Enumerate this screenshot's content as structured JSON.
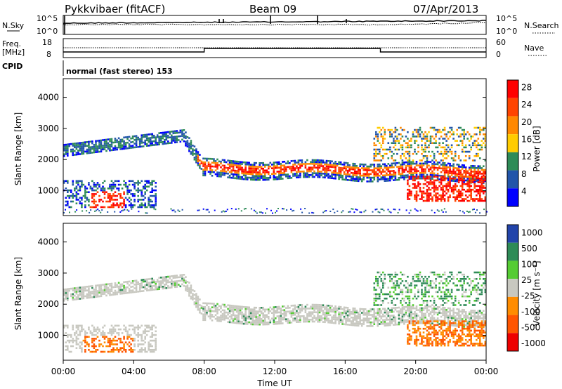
{
  "header": {
    "radar": "Pykkvibaer (fitACF)",
    "beam": "Beam 09",
    "date": "07/Apr/2013"
  },
  "strip_noise": {
    "left_label": "N.Sky",
    "right_label": "N.Search",
    "left_ticks": [
      "10^5",
      "10^0"
    ],
    "right_ticks": [
      "10^5",
      "10^0"
    ]
  },
  "strip_freq": {
    "left_label_1": "Freq.",
    "left_label_2": "[MHz]",
    "right_label": "Nave",
    "left_ticks": [
      "18",
      "8"
    ],
    "right_ticks": [
      "60",
      "0"
    ]
  },
  "cpid": {
    "label": "CPID",
    "text": "normal (fast stereo) 153"
  },
  "chart_data": [
    {
      "type": "heatmap",
      "ylabel": "Slant Range [km]",
      "ylim": [
        200,
        4600
      ],
      "yticks": [
        "4000",
        "3000",
        "2000",
        "1000"
      ],
      "xticks": [
        "00:00",
        "04:00",
        "08:00",
        "12:00",
        "16:00",
        "20:00",
        "00:00"
      ],
      "colorbar": {
        "label": "Power [dB]",
        "ticks": [
          "28",
          "24",
          "20",
          "16",
          "12",
          "8",
          "4"
        ],
        "colors": [
          "#ff0000",
          "#ff4400",
          "#ff8800",
          "#ffcc00",
          "#2e8b57",
          "#2255aa",
          "#0000ff"
        ]
      }
    },
    {
      "type": "heatmap",
      "ylabel": "Slant Range [km]",
      "ylim": [
        200,
        4600
      ],
      "yticks": [
        "4000",
        "3000",
        "2000",
        "1000"
      ],
      "xticks": [
        "00:00",
        "04:00",
        "08:00",
        "12:00",
        "16:00",
        "20:00",
        "00:00"
      ],
      "xlabel": "Time UT",
      "colorbar": {
        "label": "Velocity [m s⁻¹]",
        "ticks": [
          "1000",
          "500",
          "100",
          "25",
          "-25",
          "-100",
          "-500",
          "-1000"
        ],
        "colors": [
          "#2244aa",
          "#2e8b57",
          "#55cc33",
          "#c8c8c0",
          "#ff8c00",
          "#ff5500",
          "#ee0000"
        ]
      }
    }
  ]
}
